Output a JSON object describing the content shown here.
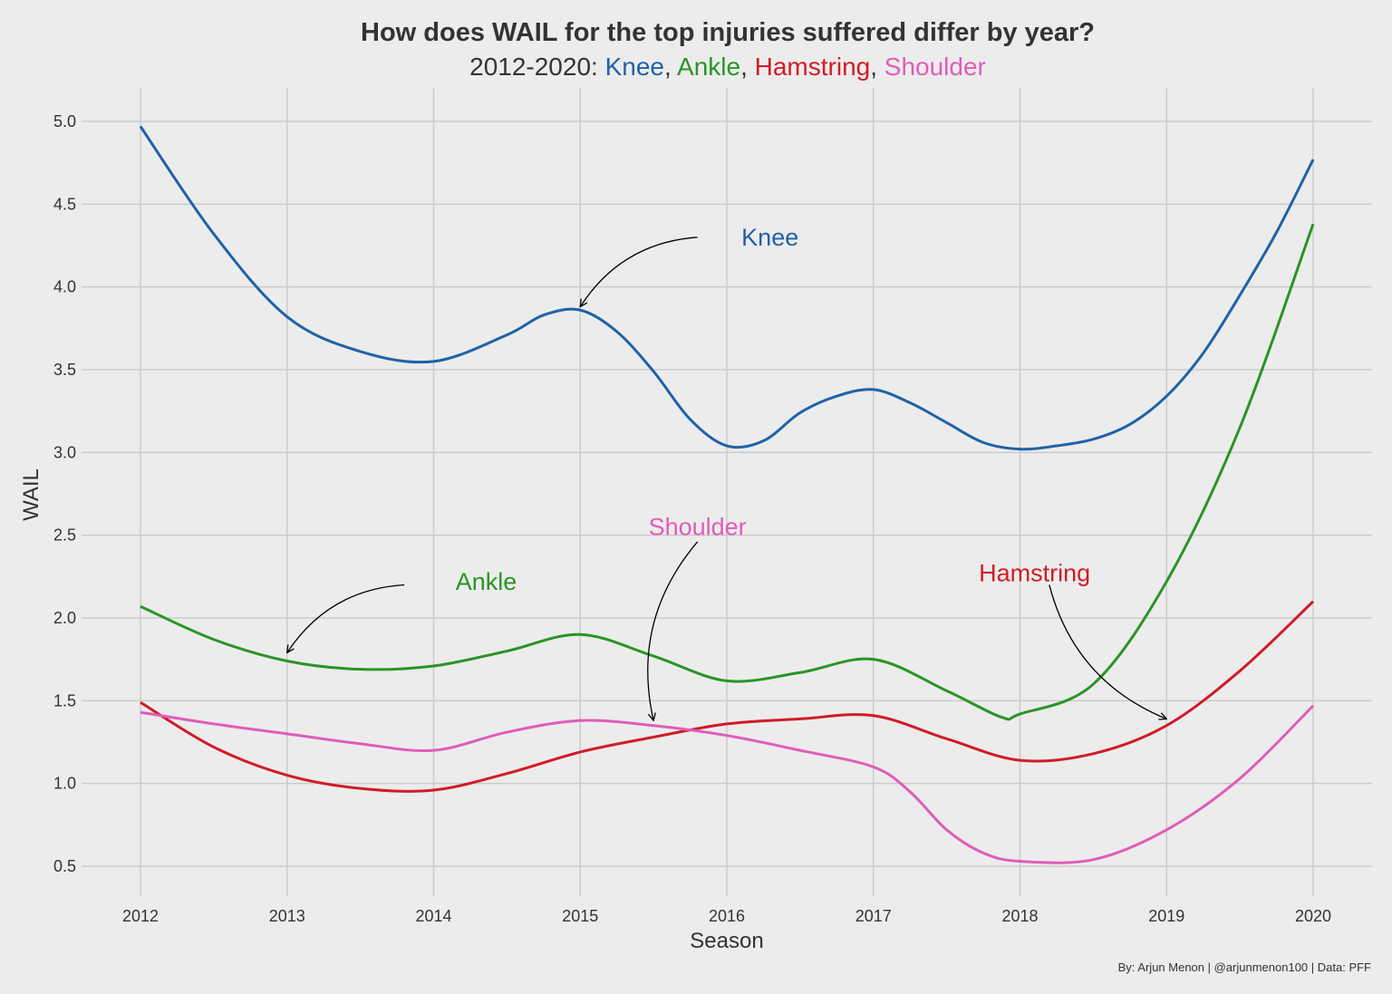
{
  "chart_data": {
    "type": "line",
    "title": "How does WAIL for the top injuries suffered differ by year?",
    "subtitle_prefix": "2012-2020: ",
    "xlabel": "Season",
    "ylabel": "WAIL",
    "caption": "By: Arjun Menon | @arjunmenon100 | Data: PFF",
    "xlim": [
      2011.6,
      2020.4
    ],
    "ylim": [
      0.32,
      5.2
    ],
    "x_ticks": [
      "2012",
      "2013",
      "2014",
      "2015",
      "2016",
      "2017",
      "2018",
      "2019",
      "2020"
    ],
    "y_ticks": [
      "0.5",
      "1.0",
      "1.5",
      "2.0",
      "2.5",
      "3.0",
      "3.5",
      "4.0",
      "4.5",
      "5.0"
    ],
    "grid": true,
    "legend": "none (series named in subtitle and annotations)",
    "background": "#ececec",
    "series": [
      {
        "name": "Knee",
        "color": "#1f62a8",
        "x": [
          2012,
          2012.5,
          2013,
          2013.5,
          2014,
          2014.5,
          2014.75,
          2015,
          2015.25,
          2015.5,
          2015.75,
          2016,
          2016.25,
          2016.5,
          2016.75,
          2017,
          2017.25,
          2017.5,
          2017.75,
          2018,
          2018.25,
          2018.5,
          2018.75,
          2019,
          2019.25,
          2019.5,
          2019.75,
          2020
        ],
        "y": [
          4.97,
          4.32,
          3.82,
          3.61,
          3.55,
          3.71,
          3.83,
          3.86,
          3.73,
          3.49,
          3.2,
          3.04,
          3.07,
          3.24,
          3.34,
          3.38,
          3.3,
          3.18,
          3.06,
          3.02,
          3.04,
          3.08,
          3.17,
          3.34,
          3.6,
          3.95,
          4.33,
          4.77
        ]
      },
      {
        "name": "Ankle",
        "color": "#2a9425",
        "x": [
          2012,
          2012.5,
          2013,
          2013.5,
          2014,
          2014.5,
          2015,
          2015.5,
          2016,
          2016.5,
          2017,
          2017.5,
          2017.875,
          2018,
          2018.5,
          2019,
          2019.5,
          2020
        ],
        "y": [
          2.07,
          1.87,
          1.74,
          1.69,
          1.71,
          1.8,
          1.9,
          1.77,
          1.62,
          1.67,
          1.75,
          1.56,
          1.4,
          1.42,
          1.6,
          2.22,
          3.15,
          4.38
        ]
      },
      {
        "name": "Hamstring",
        "color": "#d01c26",
        "x": [
          2012,
          2012.5,
          2013,
          2013.5,
          2014,
          2014.5,
          2015,
          2015.5,
          2016,
          2016.5,
          2017,
          2017.5,
          2018,
          2018.5,
          2019,
          2019.5,
          2020
        ],
        "y": [
          1.49,
          1.22,
          1.05,
          0.97,
          0.96,
          1.06,
          1.19,
          1.28,
          1.36,
          1.39,
          1.41,
          1.27,
          1.14,
          1.18,
          1.35,
          1.68,
          2.1
        ]
      },
      {
        "name": "Shoulder",
        "color": "#df5db8",
        "x": [
          2012,
          2012.5,
          2013,
          2013.5,
          2014,
          2014.5,
          2015,
          2015.5,
          2016,
          2016.5,
          2017,
          2017.25,
          2017.5,
          2017.75,
          2018,
          2018.5,
          2019,
          2019.5,
          2020
        ],
        "y": [
          1.43,
          1.36,
          1.3,
          1.24,
          1.2,
          1.31,
          1.38,
          1.35,
          1.29,
          1.2,
          1.1,
          0.95,
          0.72,
          0.58,
          0.53,
          0.54,
          0.72,
          1.03,
          1.47
        ]
      }
    ],
    "annotations": [
      {
        "text": "Knee",
        "series": 0,
        "label_at": [
          2016.1,
          4.3
        ],
        "arrow_from": [
          2015.8,
          4.3
        ],
        "arrow_to": [
          2015.0,
          3.88
        ]
      },
      {
        "text": "Ankle",
        "series": 1,
        "label_at": [
          2014.15,
          2.22
        ],
        "arrow_from": [
          2013.8,
          2.2
        ],
        "arrow_to": [
          2013.0,
          1.79
        ]
      },
      {
        "text": "Shoulder",
        "series": 3,
        "label_at": [
          2015.8,
          2.55
        ],
        "arrow_from": [
          2015.8,
          2.46
        ],
        "arrow_to": [
          2015.5,
          1.38
        ]
      },
      {
        "text": "Hamstring",
        "series": 2,
        "label_at": [
          2018.1,
          2.27
        ],
        "arrow_from": [
          2018.2,
          2.2
        ],
        "arrow_to": [
          2019.0,
          1.39
        ]
      }
    ]
  }
}
